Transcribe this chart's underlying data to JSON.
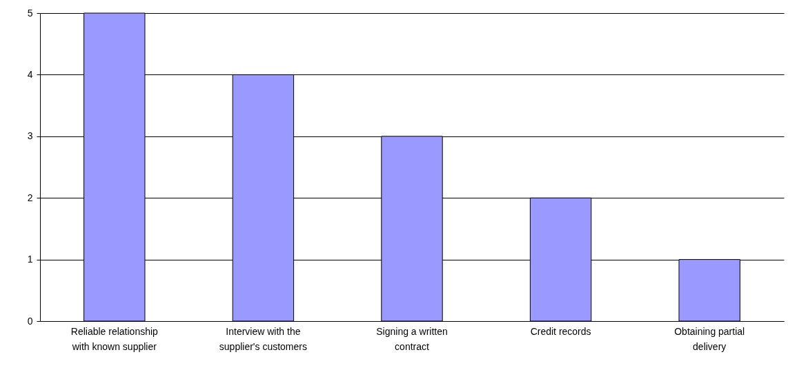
{
  "chart_data": {
    "type": "bar",
    "categories": [
      "Reliable relationship with known supplier",
      "Interview with the supplier's customers",
      "Signing a written contract",
      "Credit records",
      "Obtaining partial delivery"
    ],
    "values": [
      5,
      4,
      3,
      2,
      1
    ],
    "color": "#9999ff",
    "ylim": [
      0,
      5
    ],
    "yticks": [
      0,
      1,
      2,
      3,
      4,
      5
    ],
    "grid": "y"
  }
}
